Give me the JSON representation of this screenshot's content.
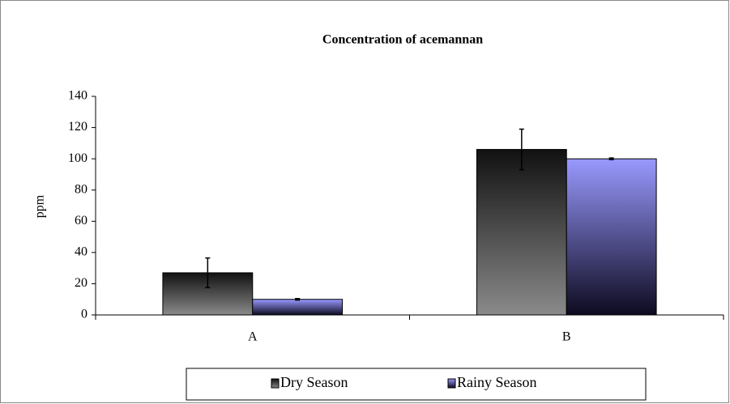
{
  "chart_data": {
    "type": "bar",
    "title": "Concentration of acemannan",
    "ylabel": "ppm",
    "categories": [
      "A",
      "B"
    ],
    "series": [
      {
        "name": "Dry Season",
        "color": "#111111",
        "values": [
          27,
          106
        ],
        "errors": [
          9.5,
          13
        ]
      },
      {
        "name": "Rainy Season",
        "color": "#9999ff",
        "values": [
          10,
          100
        ],
        "errors": [
          0.5,
          0.5
        ]
      }
    ],
    "ylim": [
      0,
      140
    ],
    "yticks": [
      0,
      20,
      40,
      60,
      80,
      100,
      120,
      140
    ],
    "legend": "bottom"
  }
}
